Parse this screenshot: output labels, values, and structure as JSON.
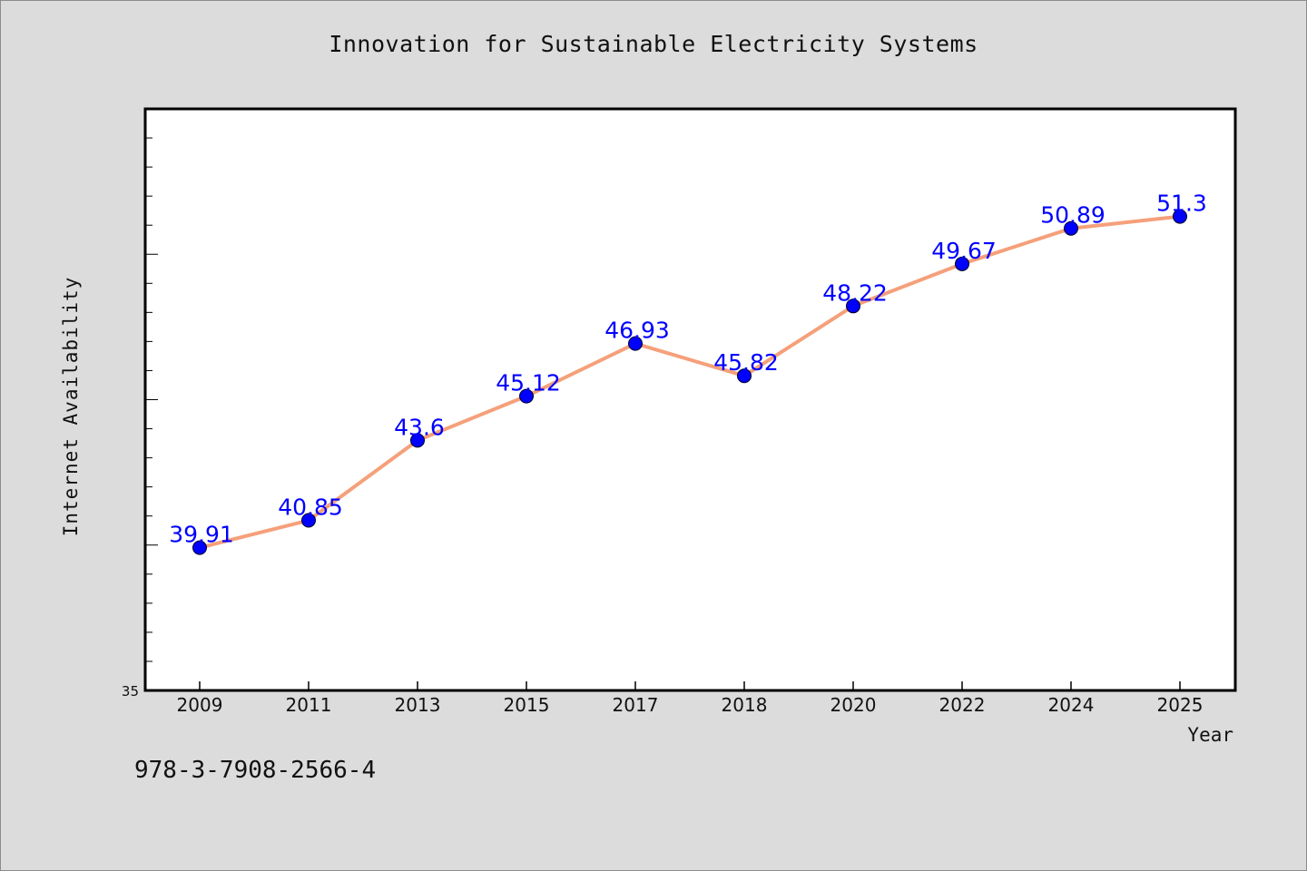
{
  "chart_data": {
    "type": "line",
    "title": "Innovation for Sustainable Electricity Systems",
    "xlabel": "Year",
    "ylabel": "Internet Availability",
    "categories": [
      "2009",
      "2011",
      "2013",
      "2015",
      "2017",
      "2018",
      "2020",
      "2022",
      "2024",
      "2025"
    ],
    "values": [
      39.91,
      40.85,
      43.6,
      45.12,
      46.93,
      45.82,
      48.22,
      49.67,
      50.89,
      51.3
    ],
    "data_labels": [
      "39.91",
      "40.85",
      "43.6",
      "45.12",
      "46.93",
      "45.82",
      "48.22",
      "49.67",
      "50.89",
      "51.3"
    ],
    "ytick_labels": [
      "35"
    ],
    "ylim": [
      35,
      55
    ],
    "grid": false,
    "colors": {
      "line": "#f5a07a",
      "marker": "#0000ff",
      "label": "#0000ff",
      "plot_bg": "#ffffff",
      "page_bg": "#dcdcdc"
    }
  },
  "footer": {
    "code": "978-3-7908-2566-4"
  }
}
